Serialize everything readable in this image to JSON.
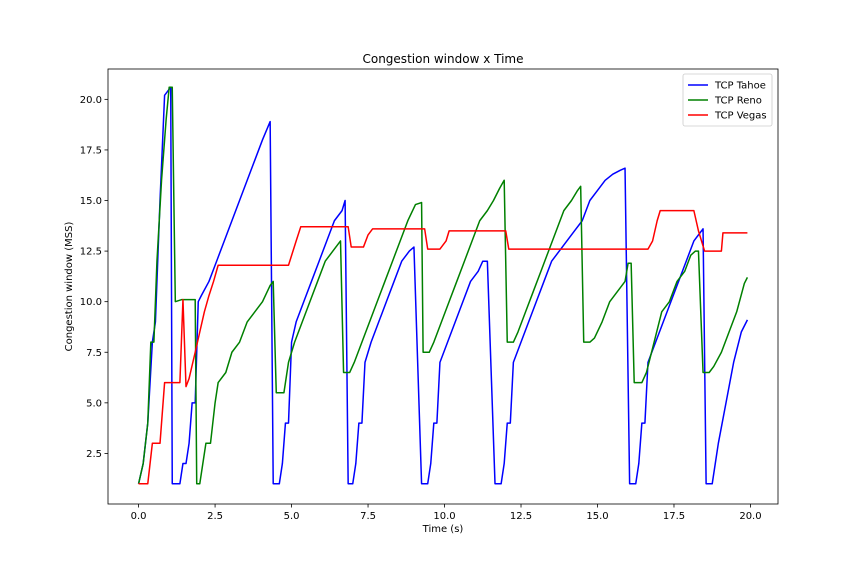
{
  "chart_data": {
    "type": "line",
    "title": "Congestion window x Time",
    "xlabel": "Time (s)",
    "ylabel": "Congestion window (MSS)",
    "xlim": [
      -1.0,
      20.9
    ],
    "ylim": [
      0.0,
      21.5
    ],
    "xticks": [
      0.0,
      2.5,
      5.0,
      7.5,
      10.0,
      12.5,
      15.0,
      17.5,
      20.0
    ],
    "xtick_labels": [
      "0.0",
      "2.5",
      "5.0",
      "7.5",
      "10.0",
      "12.5",
      "15.0",
      "17.5",
      "20.0"
    ],
    "yticks": [
      2.5,
      5.0,
      7.5,
      10.0,
      12.5,
      15.0,
      17.5,
      20.0
    ],
    "ytick_labels": [
      "2.5",
      "5.0",
      "7.5",
      "10.0",
      "12.5",
      "15.0",
      "17.5",
      "20.0"
    ],
    "grid": false,
    "legend_position": "top-right",
    "series": [
      {
        "name": "TCP Tahoe",
        "color": "#0000ff",
        "points": [
          [
            0.0,
            1.0
          ],
          [
            0.15,
            2.0
          ],
          [
            0.3,
            4.0
          ],
          [
            0.45,
            8.0
          ],
          [
            0.55,
            9.0
          ],
          [
            0.7,
            15.0
          ],
          [
            0.85,
            20.2
          ],
          [
            1.05,
            20.6
          ],
          [
            1.1,
            1.0
          ],
          [
            1.35,
            1.0
          ],
          [
            1.45,
            2.0
          ],
          [
            1.55,
            2.0
          ],
          [
            1.65,
            3.0
          ],
          [
            1.75,
            5.0
          ],
          [
            1.85,
            5.0
          ],
          [
            1.95,
            10.0
          ],
          [
            2.05,
            10.3
          ],
          [
            2.3,
            11.0
          ],
          [
            2.55,
            12.0
          ],
          [
            2.8,
            13.0
          ],
          [
            3.05,
            14.0
          ],
          [
            3.3,
            15.0
          ],
          [
            3.55,
            16.0
          ],
          [
            3.8,
            17.0
          ],
          [
            4.05,
            18.0
          ],
          [
            4.3,
            18.9
          ],
          [
            4.4,
            1.0
          ],
          [
            4.6,
            1.0
          ],
          [
            4.7,
            2.0
          ],
          [
            4.8,
            4.0
          ],
          [
            4.9,
            4.0
          ],
          [
            5.0,
            8.0
          ],
          [
            5.15,
            9.0
          ],
          [
            5.4,
            10.0
          ],
          [
            5.65,
            11.0
          ],
          [
            5.9,
            12.0
          ],
          [
            6.15,
            13.0
          ],
          [
            6.4,
            14.0
          ],
          [
            6.65,
            14.5
          ],
          [
            6.75,
            15.0
          ],
          [
            6.85,
            1.0
          ],
          [
            7.0,
            1.0
          ],
          [
            7.1,
            2.0
          ],
          [
            7.2,
            4.0
          ],
          [
            7.3,
            4.0
          ],
          [
            7.4,
            7.0
          ],
          [
            7.6,
            8.0
          ],
          [
            7.85,
            9.0
          ],
          [
            8.1,
            10.0
          ],
          [
            8.35,
            11.0
          ],
          [
            8.6,
            12.0
          ],
          [
            8.85,
            12.5
          ],
          [
            9.0,
            12.7
          ],
          [
            9.25,
            1.0
          ],
          [
            9.45,
            1.0
          ],
          [
            9.55,
            2.0
          ],
          [
            9.65,
            4.0
          ],
          [
            9.75,
            4.0
          ],
          [
            9.85,
            7.0
          ],
          [
            10.1,
            8.0
          ],
          [
            10.35,
            9.0
          ],
          [
            10.6,
            10.0
          ],
          [
            10.85,
            11.0
          ],
          [
            11.1,
            11.5
          ],
          [
            11.25,
            12.0
          ],
          [
            11.4,
            12.0
          ],
          [
            11.65,
            1.0
          ],
          [
            11.85,
            1.0
          ],
          [
            11.95,
            2.0
          ],
          [
            12.05,
            4.0
          ],
          [
            12.15,
            4.0
          ],
          [
            12.25,
            7.0
          ],
          [
            12.5,
            8.0
          ],
          [
            12.75,
            9.0
          ],
          [
            13.0,
            10.0
          ],
          [
            13.25,
            11.0
          ],
          [
            13.5,
            12.0
          ],
          [
            13.75,
            12.5
          ],
          [
            14.0,
            13.0
          ],
          [
            14.25,
            13.5
          ],
          [
            14.5,
            14.0
          ],
          [
            14.75,
            15.0
          ],
          [
            15.0,
            15.5
          ],
          [
            15.25,
            16.0
          ],
          [
            15.5,
            16.3
          ],
          [
            15.75,
            16.5
          ],
          [
            15.9,
            16.6
          ],
          [
            16.05,
            1.0
          ],
          [
            16.25,
            1.0
          ],
          [
            16.35,
            2.0
          ],
          [
            16.45,
            4.0
          ],
          [
            16.55,
            4.0
          ],
          [
            16.65,
            7.0
          ],
          [
            16.9,
            8.0
          ],
          [
            17.15,
            9.0
          ],
          [
            17.4,
            10.0
          ],
          [
            17.65,
            11.0
          ],
          [
            17.9,
            12.0
          ],
          [
            18.15,
            13.0
          ],
          [
            18.35,
            13.4
          ],
          [
            18.45,
            13.6
          ],
          [
            18.55,
            1.0
          ],
          [
            18.75,
            1.0
          ],
          [
            18.85,
            2.0
          ],
          [
            18.95,
            3.0
          ],
          [
            19.2,
            5.0
          ],
          [
            19.45,
            7.0
          ],
          [
            19.7,
            8.5
          ],
          [
            19.9,
            9.1
          ]
        ]
      },
      {
        "name": "TCP Reno",
        "color": "#008000",
        "points": [
          [
            0.0,
            1.0
          ],
          [
            0.15,
            2.0
          ],
          [
            0.3,
            4.0
          ],
          [
            0.4,
            8.0
          ],
          [
            0.5,
            8.0
          ],
          [
            0.6,
            12.0
          ],
          [
            0.75,
            16.0
          ],
          [
            0.9,
            19.0
          ],
          [
            1.0,
            20.6
          ],
          [
            1.1,
            20.6
          ],
          [
            1.2,
            10.0
          ],
          [
            1.4,
            10.1
          ],
          [
            1.85,
            10.1
          ],
          [
            1.9,
            1.0
          ],
          [
            2.0,
            1.0
          ],
          [
            2.1,
            2.0
          ],
          [
            2.2,
            3.0
          ],
          [
            2.35,
            3.0
          ],
          [
            2.5,
            5.0
          ],
          [
            2.6,
            6.0
          ],
          [
            2.85,
            6.5
          ],
          [
            3.05,
            7.5
          ],
          [
            3.3,
            8.0
          ],
          [
            3.55,
            9.0
          ],
          [
            3.8,
            9.5
          ],
          [
            4.05,
            10.0
          ],
          [
            4.3,
            10.8
          ],
          [
            4.4,
            11.0
          ],
          [
            4.5,
            5.5
          ],
          [
            4.75,
            5.5
          ],
          [
            4.9,
            7.0
          ],
          [
            5.1,
            8.0
          ],
          [
            5.35,
            9.0
          ],
          [
            5.6,
            10.0
          ],
          [
            5.85,
            11.0
          ],
          [
            6.1,
            12.0
          ],
          [
            6.35,
            12.5
          ],
          [
            6.6,
            13.0
          ],
          [
            6.7,
            6.5
          ],
          [
            6.9,
            6.5
          ],
          [
            7.05,
            7.0
          ],
          [
            7.3,
            8.0
          ],
          [
            7.55,
            9.0
          ],
          [
            7.8,
            10.0
          ],
          [
            8.05,
            11.0
          ],
          [
            8.3,
            12.0
          ],
          [
            8.55,
            13.0
          ],
          [
            8.8,
            14.0
          ],
          [
            9.05,
            14.8
          ],
          [
            9.25,
            14.9
          ],
          [
            9.3,
            7.5
          ],
          [
            9.5,
            7.5
          ],
          [
            9.65,
            8.0
          ],
          [
            9.9,
            9.0
          ],
          [
            10.15,
            10.0
          ],
          [
            10.4,
            11.0
          ],
          [
            10.65,
            12.0
          ],
          [
            10.9,
            13.0
          ],
          [
            11.15,
            14.0
          ],
          [
            11.4,
            14.5
          ],
          [
            11.6,
            15.0
          ],
          [
            11.8,
            15.6
          ],
          [
            11.95,
            16.0
          ],
          [
            12.05,
            8.0
          ],
          [
            12.25,
            8.0
          ],
          [
            12.4,
            8.5
          ],
          [
            12.65,
            9.5
          ],
          [
            12.9,
            10.5
          ],
          [
            13.15,
            11.5
          ],
          [
            13.4,
            12.5
          ],
          [
            13.65,
            13.5
          ],
          [
            13.9,
            14.5
          ],
          [
            14.15,
            15.0
          ],
          [
            14.35,
            15.5
          ],
          [
            14.45,
            15.7
          ],
          [
            14.55,
            8.0
          ],
          [
            14.75,
            8.0
          ],
          [
            14.9,
            8.2
          ],
          [
            15.15,
            9.0
          ],
          [
            15.4,
            10.0
          ],
          [
            15.65,
            10.5
          ],
          [
            15.9,
            11.0
          ],
          [
            16.0,
            11.9
          ],
          [
            16.1,
            11.9
          ],
          [
            16.2,
            6.0
          ],
          [
            16.45,
            6.0
          ],
          [
            16.6,
            6.5
          ],
          [
            16.85,
            8.0
          ],
          [
            17.1,
            9.5
          ],
          [
            17.35,
            10.0
          ],
          [
            17.6,
            11.0
          ],
          [
            17.85,
            11.5
          ],
          [
            18.05,
            12.3
          ],
          [
            18.2,
            12.5
          ],
          [
            18.3,
            12.5
          ],
          [
            18.45,
            6.5
          ],
          [
            18.65,
            6.5
          ],
          [
            18.8,
            6.8
          ],
          [
            19.05,
            7.5
          ],
          [
            19.3,
            8.5
          ],
          [
            19.55,
            9.5
          ],
          [
            19.8,
            10.9
          ],
          [
            19.9,
            11.2
          ]
        ]
      },
      {
        "name": "TCP Vegas",
        "color": "#ff0000",
        "points": [
          [
            0.0,
            1.0
          ],
          [
            0.3,
            1.0
          ],
          [
            0.45,
            3.0
          ],
          [
            0.7,
            3.0
          ],
          [
            0.85,
            6.0
          ],
          [
            1.35,
            6.0
          ],
          [
            1.45,
            10.1
          ],
          [
            1.55,
            5.8
          ],
          [
            1.65,
            6.2
          ],
          [
            1.85,
            7.5
          ],
          [
            2.0,
            8.5
          ],
          [
            2.15,
            9.5
          ],
          [
            2.3,
            10.3
          ],
          [
            2.45,
            11.0
          ],
          [
            2.6,
            11.8
          ],
          [
            4.9,
            11.8
          ],
          [
            5.15,
            13.0
          ],
          [
            5.3,
            13.7
          ],
          [
            6.85,
            13.7
          ],
          [
            6.95,
            12.7
          ],
          [
            7.35,
            12.7
          ],
          [
            7.5,
            13.3
          ],
          [
            7.65,
            13.6
          ],
          [
            9.35,
            13.6
          ],
          [
            9.45,
            12.6
          ],
          [
            9.85,
            12.6
          ],
          [
            10.05,
            13.0
          ],
          [
            10.15,
            13.5
          ],
          [
            12.0,
            13.5
          ],
          [
            12.1,
            12.6
          ],
          [
            16.65,
            12.6
          ],
          [
            16.8,
            13.0
          ],
          [
            16.95,
            14.0
          ],
          [
            17.05,
            14.5
          ],
          [
            18.15,
            14.5
          ],
          [
            18.3,
            13.5
          ],
          [
            18.5,
            12.5
          ],
          [
            18.55,
            12.5
          ],
          [
            19.05,
            12.5
          ],
          [
            19.1,
            13.4
          ],
          [
            19.9,
            13.4
          ]
        ]
      }
    ]
  }
}
